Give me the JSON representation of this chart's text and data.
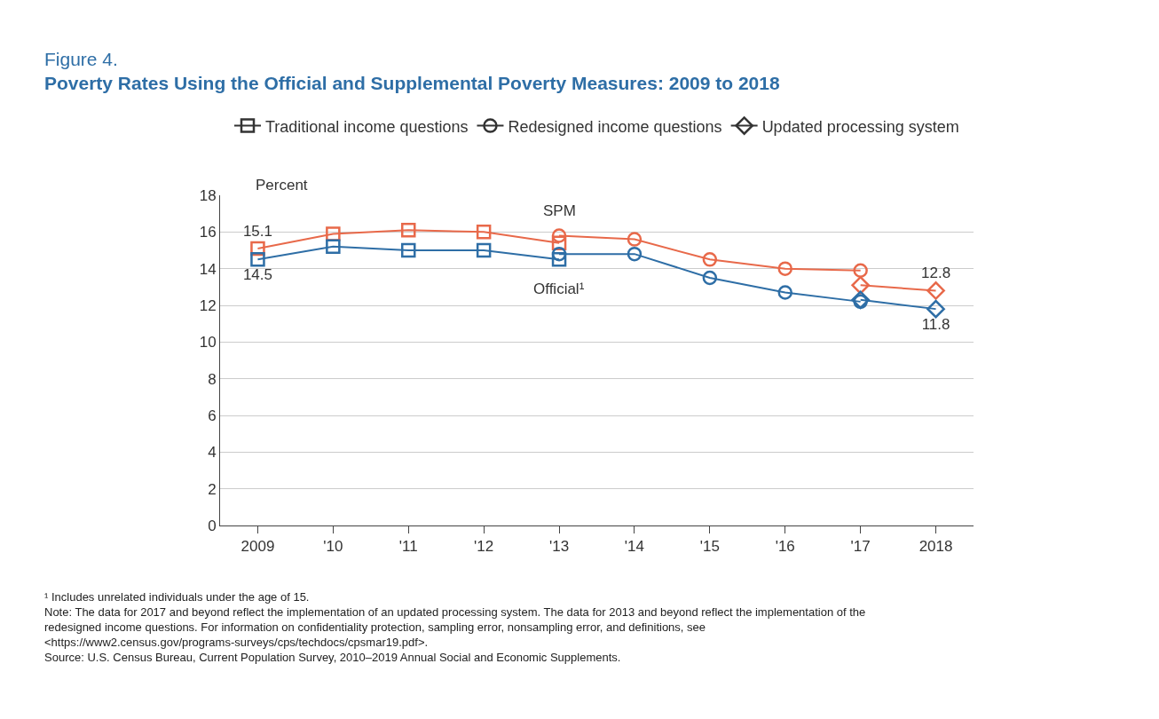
{
  "chart_data": {
    "type": "line",
    "title": "Figure 4.",
    "subtitle": "Poverty Rates Using the Official and Supplemental Poverty Measures: 2009 to 2018",
    "ylabel": "Percent",
    "categories": [
      "2009",
      "'10",
      "'11",
      "'12",
      "'13",
      "'14",
      "'15",
      "'16",
      "'17",
      "2018"
    ],
    "ylim": [
      0,
      18
    ],
    "yticks": [
      0,
      2,
      4,
      6,
      8,
      10,
      12,
      14,
      16,
      18
    ],
    "grid": "y",
    "legend": "top",
    "series": [
      {
        "color": "#e8694a",
        "marker": "square",
        "values": [
          15.1,
          15.9,
          16.1,
          16.0,
          15.4,
          null,
          null,
          null,
          null,
          null
        ],
        "value_labels": [
          "15.1",
          null,
          null,
          null,
          null,
          null,
          null,
          null,
          null,
          null
        ]
      },
      {
        "color": "#2e6ea6",
        "marker": "square",
        "values": [
          14.5,
          15.2,
          15.0,
          15.0,
          14.5,
          null,
          null,
          null,
          null,
          null
        ],
        "value_labels": [
          "14.5",
          null,
          null,
          null,
          null,
          null,
          null,
          null,
          null,
          null
        ]
      },
      {
        "color": "#e8694a",
        "marker": "circle",
        "values": [
          null,
          null,
          null,
          null,
          15.8,
          15.6,
          14.5,
          14.0,
          13.9,
          null
        ]
      },
      {
        "color": "#2e6ea6",
        "marker": "circle",
        "values": [
          null,
          null,
          null,
          null,
          14.8,
          14.8,
          13.5,
          12.7,
          12.2,
          null
        ]
      },
      {
        "color": "#e8694a",
        "marker": "diamond",
        "values": [
          null,
          null,
          null,
          null,
          null,
          null,
          null,
          null,
          13.1,
          12.8
        ],
        "value_labels": [
          null,
          null,
          null,
          null,
          null,
          null,
          null,
          null,
          null,
          "12.8"
        ]
      },
      {
        "color": "#2e6ea6",
        "marker": "diamond",
        "values": [
          null,
          null,
          null,
          null,
          null,
          null,
          null,
          null,
          12.3,
          11.8
        ],
        "value_labels": [
          null,
          null,
          null,
          null,
          null,
          null,
          null,
          null,
          null,
          "11.8"
        ]
      },
      {
        "name": "Traditional income questions",
        "color": "#333333",
        "marker": "square",
        "values": [
          null,
          null,
          null,
          null,
          null,
          null,
          null,
          null,
          null,
          null
        ]
      },
      {
        "name": "Redesigned income questions",
        "color": "#333333",
        "marker": "circle",
        "values": [
          null,
          null,
          null,
          null,
          null,
          null,
          null,
          null,
          null,
          null
        ]
      },
      {
        "name": "Updated processing system",
        "color": "#333333",
        "marker": "diamond",
        "values": [
          null,
          null,
          null,
          null,
          null,
          null,
          null,
          null,
          null,
          null
        ]
      }
    ],
    "annotations": [
      {
        "text": "SPM",
        "x": "'13",
        "y": 15.8
      },
      {
        "text": "Official¹",
        "x": "'13",
        "y": 14.5
      },
      "¹ Includes unrelated individuals under the age of 15.",
      "Note: The data for 2017 and beyond reflect the implementation of an updated processing system. The data for 2013 and beyond reflect the implementation of the redesigned income questions. For information on confidentiality protection, sampling error, nonsampling error, and definitions, see <https://www2.census.gov/programs-surveys/cps/techdocs/cpsmar19.pdf>.",
      "Source: U.S. Census Bureau, Current Population Survey, 2010–2019 Annual Social and Economic Supplements."
    ]
  }
}
